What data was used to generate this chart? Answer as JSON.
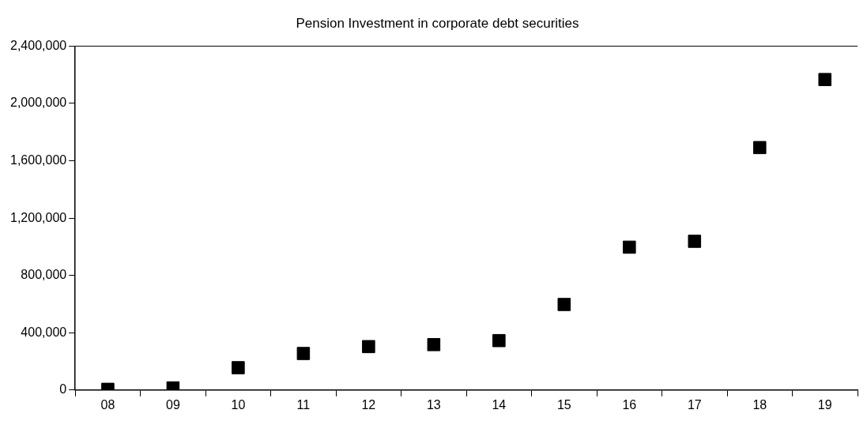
{
  "chart_data": {
    "type": "scatter",
    "title": "Pension Investment in corporate debt securities",
    "categories": [
      "08",
      "09",
      "10",
      "11",
      "12",
      "13",
      "14",
      "15",
      "16",
      "17",
      "18",
      "19"
    ],
    "values": [
      5000,
      15000,
      156000,
      255000,
      303000,
      317000,
      345000,
      597000,
      997000,
      1038000,
      1692000,
      2167000
    ],
    "color": "#000000",
    "marker": "square",
    "ylim": [
      0,
      2400000
    ],
    "yticks": [
      {
        "value": 0,
        "label": "0"
      },
      {
        "value": 400000,
        "label": "400,000"
      },
      {
        "value": 800000,
        "label": "800,000"
      },
      {
        "value": 1200000,
        "label": "1,200,000"
      },
      {
        "value": 1600000,
        "label": "1,600,000"
      },
      {
        "value": 2000000,
        "label": "2,000,000"
      },
      {
        "value": 2400000,
        "label": "2,400,000"
      }
    ],
    "grid": false,
    "legend": false
  }
}
